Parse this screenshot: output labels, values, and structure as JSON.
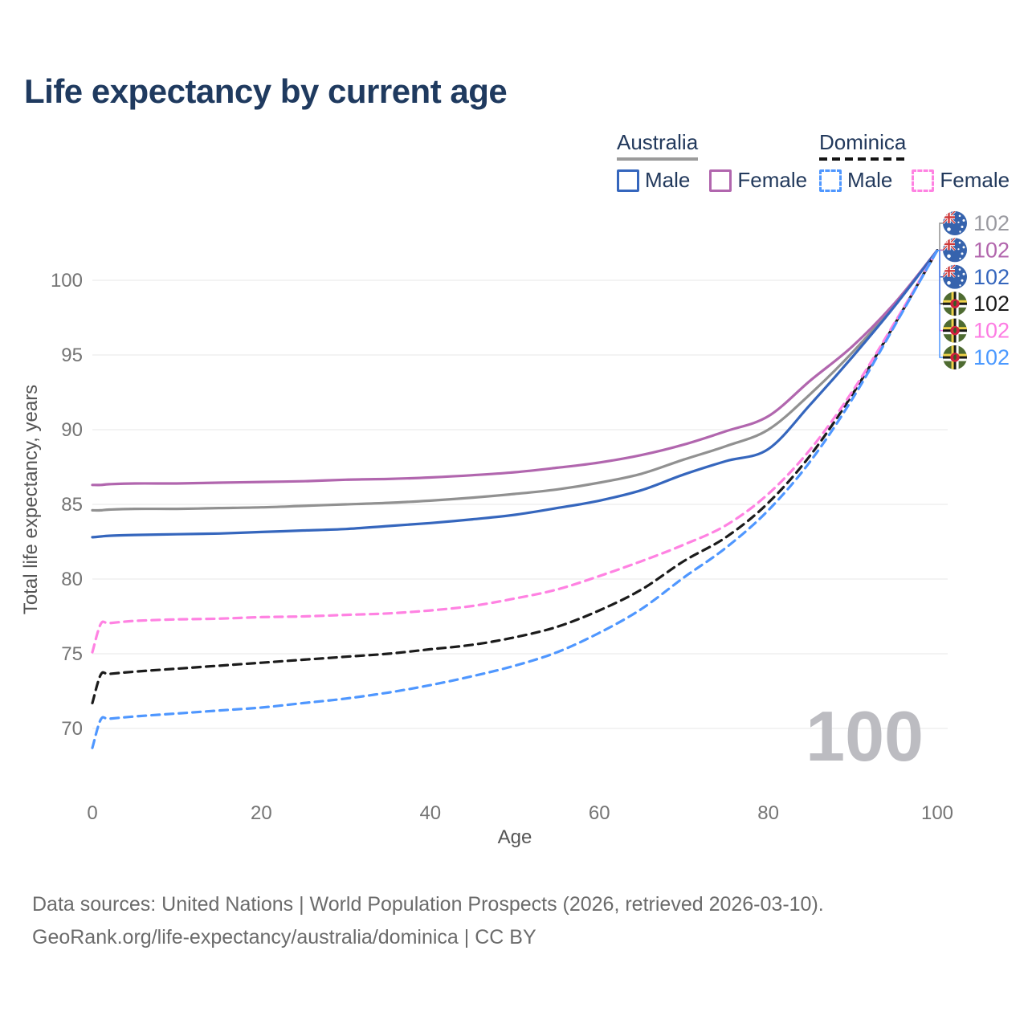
{
  "title": "Life expectancy by current age",
  "watermark": "100",
  "legend": {
    "groups": [
      {
        "country": "Australia",
        "style": "solid",
        "items": [
          {
            "label": "Male",
            "color": "#3566bd"
          },
          {
            "label": "Female",
            "color": "#b166ae"
          }
        ]
      },
      {
        "country": "Dominica",
        "style": "dashed",
        "items": [
          {
            "label": "Male",
            "color": "#4f97ff"
          },
          {
            "label": "Female",
            "color": "#ff82e2"
          }
        ]
      }
    ]
  },
  "footer": {
    "line1": "Data sources: United Nations | World Population Prospects (2026, retrieved 2026-03-10).",
    "line2": "GeoRank.org/life-expectancy/australia/dominica | CC BY"
  },
  "chart_data": {
    "type": "line",
    "title": "Life expectancy by current age",
    "xlabel": "Age",
    "ylabel": "Total life expectancy, years",
    "xlim": [
      0,
      100
    ],
    "ylim": [
      67,
      103
    ],
    "xticks": [
      0,
      20,
      40,
      60,
      80,
      100
    ],
    "yticks": [
      70,
      75,
      80,
      85,
      90,
      95,
      100
    ],
    "grid": "horizontal",
    "legend_position": "top-right",
    "x": [
      0,
      1,
      2,
      5,
      10,
      15,
      20,
      25,
      30,
      35,
      40,
      45,
      50,
      55,
      60,
      65,
      70,
      75,
      80,
      85,
      90,
      95,
      100
    ],
    "series": [
      {
        "name": "Australia (both sexes)",
        "slug": "australia-all",
        "flag": "australia",
        "color": "#919191",
        "dash": false,
        "end_label": "102",
        "end_label_color": "#9b9ba1",
        "values": [
          84.6,
          84.6,
          84.65,
          84.7,
          84.7,
          84.75,
          84.8,
          84.9,
          85.0,
          85.1,
          85.25,
          85.45,
          85.7,
          86.0,
          86.45,
          87.05,
          88.0,
          88.9,
          90.0,
          92.4,
          95.2,
          98.4,
          102
        ]
      },
      {
        "name": "Australia Female",
        "slug": "australia-female",
        "flag": "australia",
        "color": "#b166ae",
        "dash": false,
        "end_label": "102",
        "end_label_color": "#b266ad",
        "values": [
          86.3,
          86.3,
          86.35,
          86.4,
          86.4,
          86.45,
          86.5,
          86.55,
          86.65,
          86.7,
          86.8,
          86.95,
          87.15,
          87.45,
          87.8,
          88.3,
          89.0,
          89.9,
          90.9,
          93.3,
          95.6,
          98.5,
          102
        ]
      },
      {
        "name": "Australia Male",
        "slug": "australia-male",
        "flag": "australia",
        "color": "#3566bd",
        "dash": false,
        "end_label": "102",
        "end_label_color": "#3566bd",
        "values": [
          82.8,
          82.85,
          82.9,
          82.95,
          83.0,
          83.05,
          83.15,
          83.25,
          83.35,
          83.55,
          83.75,
          84.0,
          84.3,
          84.75,
          85.25,
          85.95,
          87.0,
          87.9,
          88.7,
          91.7,
          94.9,
          98.3,
          102
        ]
      },
      {
        "name": "Dominica (both sexes)",
        "slug": "dominica-all",
        "flag": "dominica",
        "color": "#1b1b1b",
        "dash": true,
        "end_label": "102",
        "end_label_color": "#1b1b1b",
        "values": [
          71.7,
          73.6,
          73.65,
          73.8,
          74.0,
          74.2,
          74.4,
          74.6,
          74.8,
          75.0,
          75.3,
          75.6,
          76.1,
          76.8,
          77.9,
          79.3,
          81.2,
          82.8,
          85.1,
          88.3,
          92.4,
          97.1,
          102
        ]
      },
      {
        "name": "Dominica Female",
        "slug": "dominica-female",
        "flag": "dominica",
        "color": "#ff82e2",
        "dash": true,
        "end_label": "102",
        "end_label_color": "#fd7ce3",
        "values": [
          75.1,
          77.0,
          77.05,
          77.2,
          77.3,
          77.35,
          77.45,
          77.5,
          77.6,
          77.7,
          77.9,
          78.2,
          78.7,
          79.3,
          80.2,
          81.2,
          82.3,
          83.6,
          85.7,
          88.7,
          92.6,
          97.2,
          102
        ]
      },
      {
        "name": "Dominica Male",
        "slug": "dominica-male",
        "flag": "dominica",
        "color": "#4f97ff",
        "dash": true,
        "end_label": "102",
        "end_label_color": "#4b99ff",
        "values": [
          68.7,
          70.6,
          70.65,
          70.8,
          71.0,
          71.2,
          71.4,
          71.7,
          72.0,
          72.4,
          72.9,
          73.5,
          74.2,
          75.1,
          76.4,
          78.0,
          80.1,
          82.1,
          84.6,
          87.9,
          92.1,
          97.0,
          102
        ]
      }
    ]
  },
  "colors": {
    "title_text": "#1f3a5f",
    "gridline": "#ececec",
    "tick_text": "#757575",
    "footer_text": "#6b6b6b",
    "watermark": "#bcbcc1",
    "australia_underline": "#9b9b9b",
    "dominica_underline": "#141414"
  }
}
